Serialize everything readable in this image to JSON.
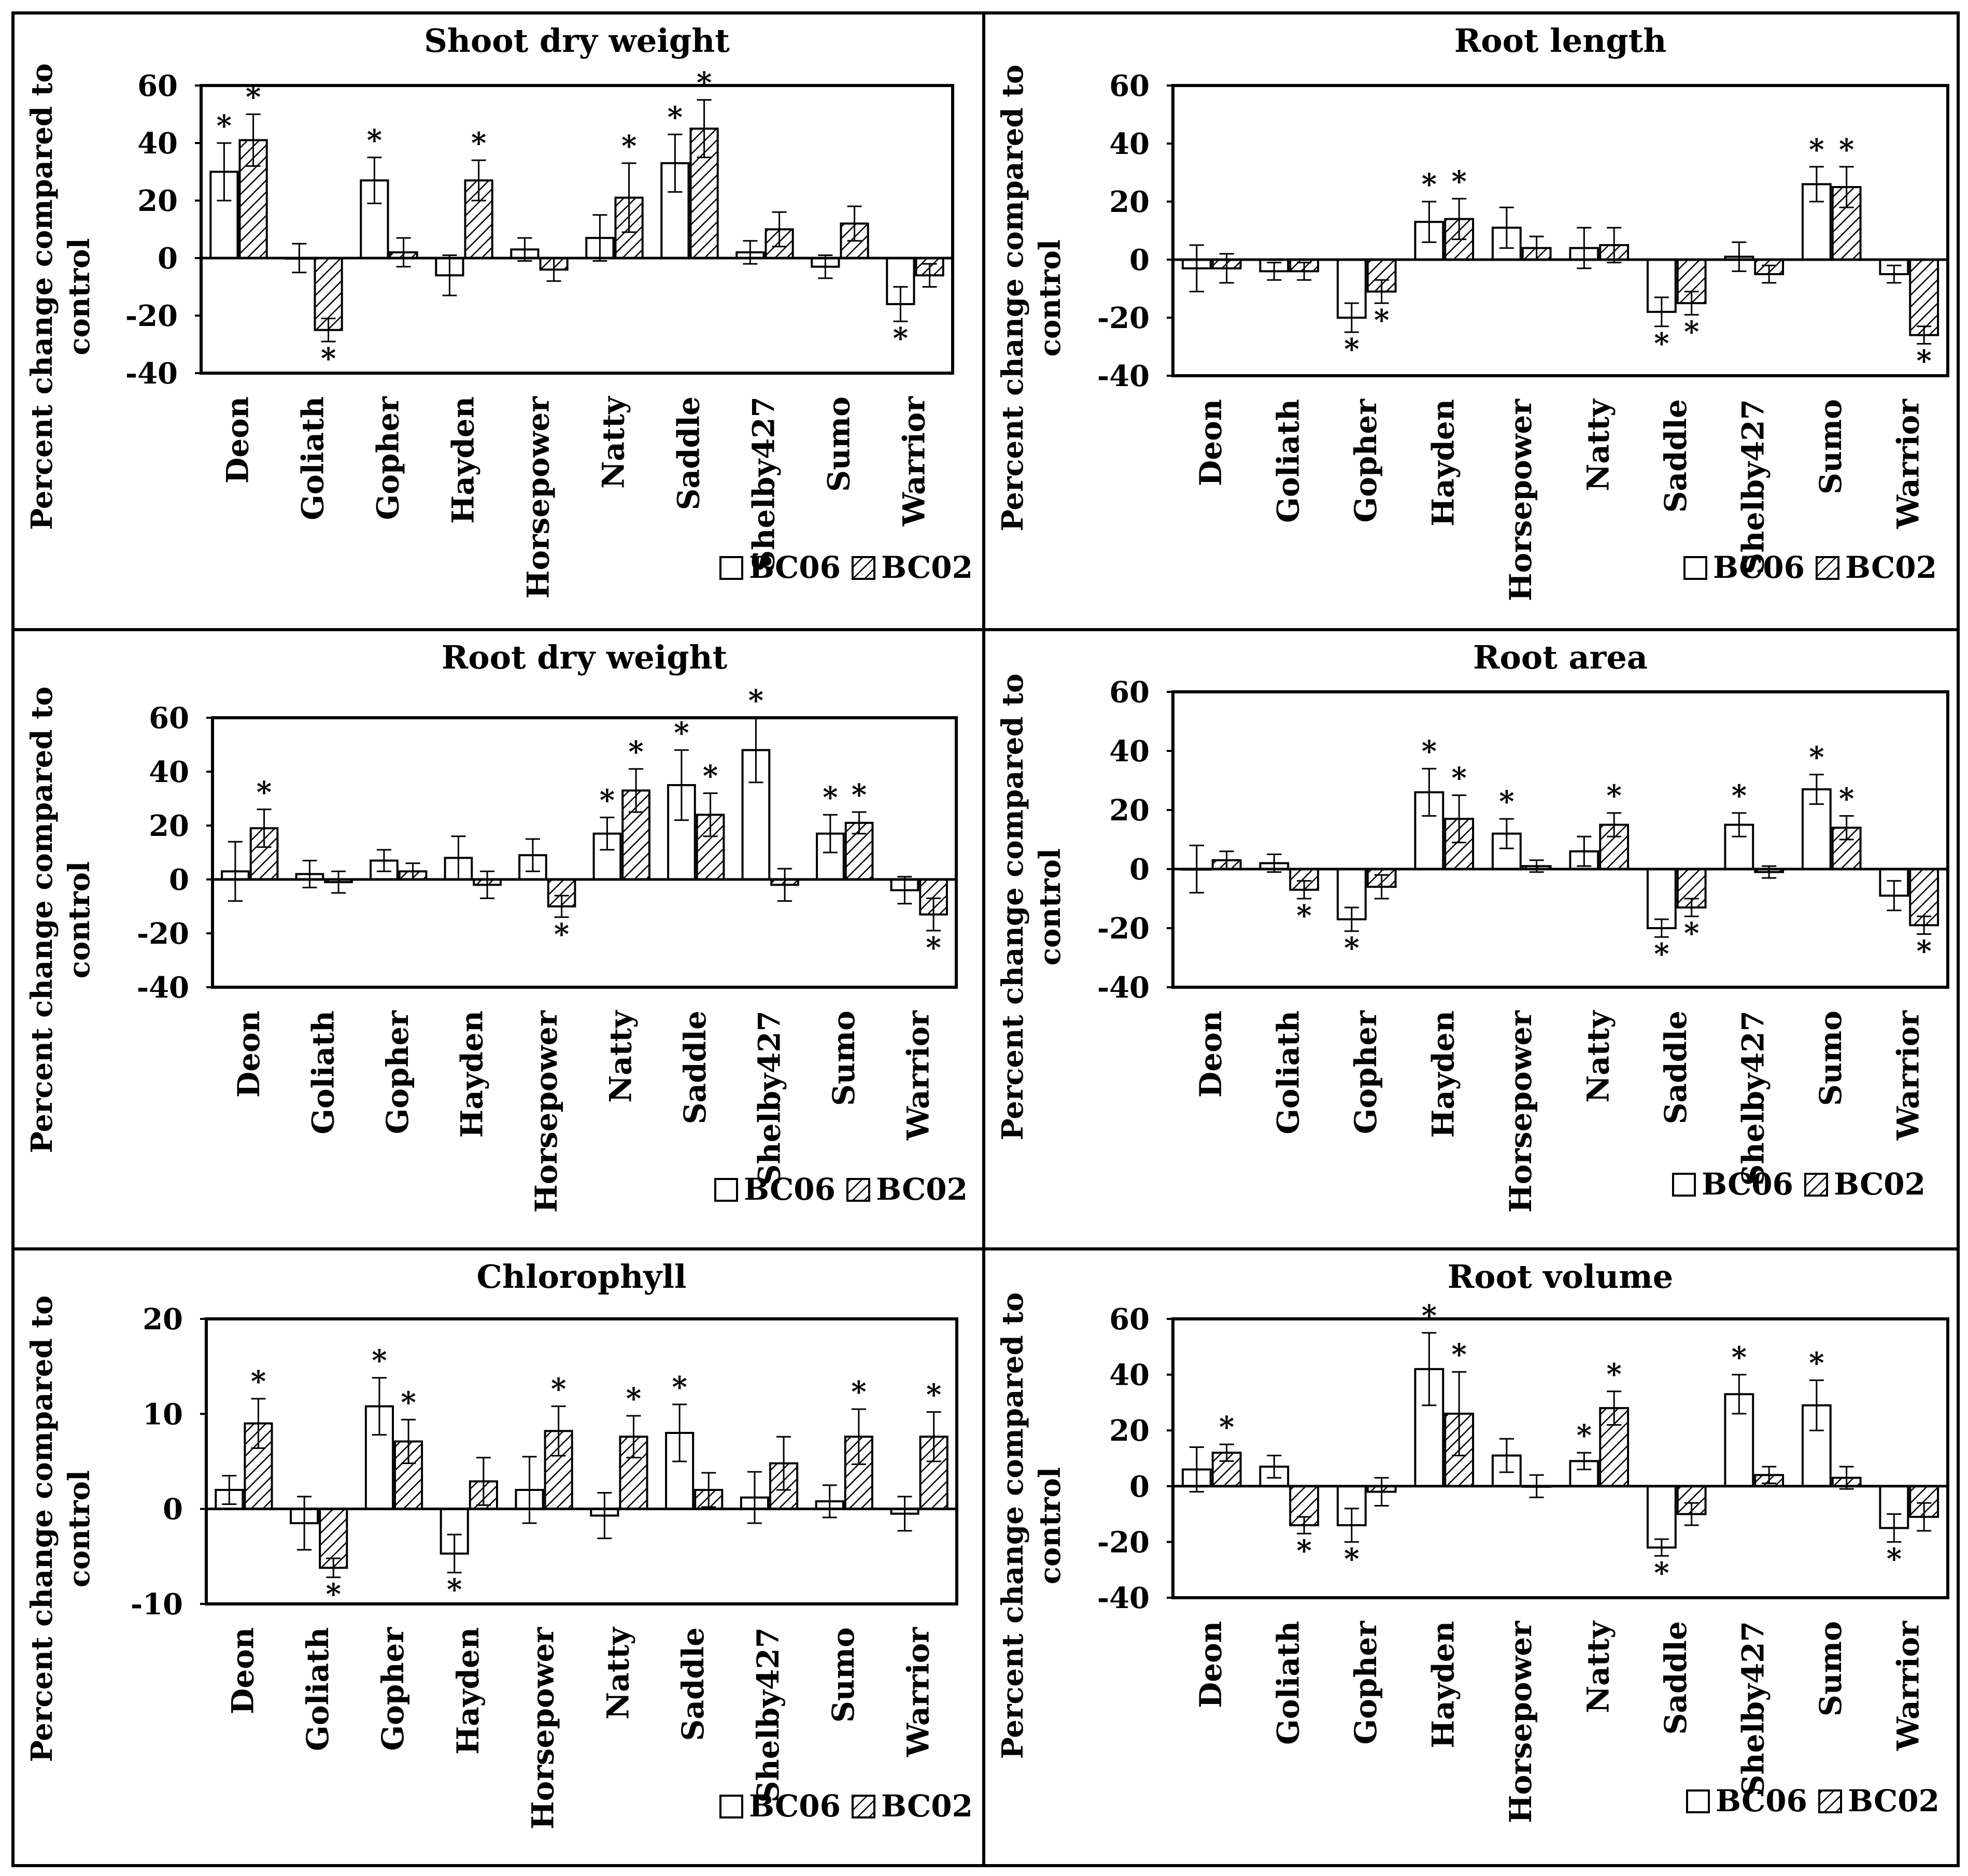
{
  "chart_data": [
    {
      "type": "bar",
      "title": "Shoot dry weight",
      "ylabel": "Percent change compared to control",
      "ylim": [
        -40,
        60
      ],
      "yticks": [
        60,
        40,
        20,
        0,
        -20,
        -40
      ],
      "categories": [
        "Deon",
        "Goliath",
        "Gopher",
        "Hayden",
        "Horsepower",
        "Natty",
        "Saddle",
        "Shelby427",
        "Sumo",
        "Warrior"
      ],
      "legend": [
        "BC06",
        "BC02"
      ],
      "series": [
        {
          "name": "BC06",
          "values": [
            30,
            0,
            27,
            -6,
            3,
            7,
            33,
            2,
            -3,
            -16
          ],
          "errors": [
            10,
            5,
            8,
            7,
            4,
            8,
            10,
            4,
            4,
            6
          ],
          "sig": [
            true,
            false,
            true,
            false,
            false,
            false,
            true,
            false,
            false,
            true
          ]
        },
        {
          "name": "BC02",
          "values": [
            41,
            -25,
            2,
            27,
            -4,
            21,
            45,
            10,
            12,
            -6
          ],
          "errors": [
            9,
            4,
            5,
            7,
            4,
            12,
            10,
            6,
            6,
            4
          ],
          "sig": [
            true,
            true,
            false,
            true,
            false,
            true,
            true,
            false,
            false,
            false
          ]
        }
      ]
    },
    {
      "type": "bar",
      "title": "Root length",
      "ylabel": "Percent change compared to control",
      "ylim": [
        -40,
        60
      ],
      "yticks": [
        60,
        40,
        20,
        0,
        -20,
        -40
      ],
      "categories": [
        "Deon",
        "Goliath",
        "Gopher",
        "Hayden",
        "Horsepower",
        "Natty",
        "Saddle",
        "Shelby427",
        "Sumo",
        "Warrior"
      ],
      "legend": [
        "BC06",
        "BC02"
      ],
      "series": [
        {
          "name": "BC06",
          "values": [
            -3,
            -4,
            -20,
            13,
            11,
            4,
            -18,
            1,
            26,
            -5
          ],
          "errors": [
            8,
            3,
            5,
            7,
            7,
            7,
            5,
            5,
            6,
            3
          ],
          "sig": [
            false,
            false,
            true,
            true,
            false,
            false,
            true,
            false,
            true,
            false
          ]
        },
        {
          "name": "BC02",
          "values": [
            -3,
            -4,
            -11,
            14,
            4,
            5,
            -15,
            -5,
            25,
            -26
          ],
          "errors": [
            5,
            3,
            4,
            7,
            4,
            6,
            4,
            3,
            7,
            3
          ],
          "sig": [
            false,
            false,
            true,
            true,
            false,
            false,
            true,
            false,
            true,
            true
          ]
        }
      ]
    },
    {
      "type": "bar",
      "title": "Root dry weight",
      "ylabel": "Percent change compared to control",
      "ylim": [
        -40,
        60
      ],
      "yticks": [
        60,
        40,
        20,
        0,
        -20,
        -40
      ],
      "categories": [
        "Deon",
        "Goliath",
        "Gopher",
        "Hayden",
        "Horsepower",
        "Natty",
        "Saddle",
        "Shelby427",
        "Sumo",
        "Warrior"
      ],
      "legend": [
        "BC06",
        "BC02"
      ],
      "series": [
        {
          "name": "BC06",
          "values": [
            3,
            2,
            7,
            8,
            9,
            17,
            35,
            48,
            17,
            -4
          ],
          "errors": [
            11,
            5,
            4,
            8,
            6,
            6,
            13,
            12,
            7,
            5
          ],
          "sig": [
            false,
            false,
            false,
            false,
            false,
            true,
            true,
            true,
            true,
            false
          ]
        },
        {
          "name": "BC02",
          "values": [
            19,
            -1,
            3,
            -2,
            -10,
            33,
            24,
            -2,
            21,
            -13
          ],
          "errors": [
            7,
            4,
            3,
            5,
            4,
            8,
            8,
            6,
            4,
            6
          ],
          "sig": [
            true,
            false,
            false,
            false,
            true,
            true,
            true,
            false,
            true,
            true
          ]
        }
      ]
    },
    {
      "type": "bar",
      "title": "Root area",
      "ylabel": "Percent change compared to control",
      "ylim": [
        -40,
        60
      ],
      "yticks": [
        60,
        40,
        20,
        0,
        -20,
        -40
      ],
      "categories": [
        "Deon",
        "Goliath",
        "Gopher",
        "Hayden",
        "Horsepower",
        "Natty",
        "Saddle",
        "Shelby427",
        "Sumo",
        "Warrior"
      ],
      "legend": [
        "BC06",
        "BC02"
      ],
      "series": [
        {
          "name": "BC06",
          "values": [
            0,
            2,
            -17,
            26,
            12,
            6,
            -20,
            15,
            27,
            -9
          ],
          "errors": [
            8,
            3,
            4,
            8,
            5,
            5,
            3,
            4,
            5,
            5
          ],
          "sig": [
            false,
            false,
            true,
            true,
            true,
            false,
            true,
            true,
            true,
            false
          ]
        },
        {
          "name": "BC02",
          "values": [
            3,
            -7,
            -6,
            17,
            1,
            15,
            -13,
            -1,
            14,
            -19
          ],
          "errors": [
            3,
            3,
            4,
            8,
            2,
            4,
            3,
            2,
            4,
            3
          ],
          "sig": [
            false,
            true,
            false,
            true,
            false,
            true,
            true,
            false,
            true,
            true
          ]
        }
      ]
    },
    {
      "type": "bar",
      "title": "Chlorophyll",
      "ylabel": "Percent change compared to control",
      "ylim": [
        -10,
        20
      ],
      "yticks": [
        20,
        10,
        0,
        -10
      ],
      "categories": [
        "Deon",
        "Goliath",
        "Gopher",
        "Hayden",
        "Horsepower",
        "Natty",
        "Saddle",
        "Shelby427",
        "Sumo",
        "Warrior"
      ],
      "legend": [
        "BC06",
        "BC02"
      ],
      "series": [
        {
          "name": "BC06",
          "values": [
            2,
            -1.5,
            10.8,
            -4.7,
            2,
            -0.7,
            8,
            1.2,
            0.8,
            -0.5
          ],
          "errors": [
            1.5,
            2.8,
            3,
            2,
            3.5,
            2.4,
            3,
            2.7,
            1.7,
            1.8
          ],
          "sig": [
            false,
            false,
            true,
            true,
            false,
            false,
            true,
            false,
            false,
            false
          ]
        },
        {
          "name": "BC02",
          "values": [
            9,
            -6.2,
            7.1,
            2.9,
            8.2,
            7.6,
            2,
            4.8,
            7.6,
            7.6
          ],
          "errors": [
            2.6,
            1,
            2.3,
            2.5,
            2.6,
            2.2,
            1.8,
            2.8,
            2.9,
            2.6
          ],
          "sig": [
            true,
            true,
            true,
            false,
            true,
            true,
            false,
            false,
            true,
            true
          ]
        }
      ]
    },
    {
      "type": "bar",
      "title": "Root volume",
      "ylabel": "Percent change compared to control",
      "ylim": [
        -40,
        60
      ],
      "yticks": [
        60,
        40,
        20,
        0,
        -20,
        -40
      ],
      "categories": [
        "Deon",
        "Goliath",
        "Gopher",
        "Hayden",
        "Horsepower",
        "Natty",
        "Saddle",
        "Shelby427",
        "Sumo",
        "Warrior"
      ],
      "legend": [
        "BC06",
        "BC02"
      ],
      "series": [
        {
          "name": "BC06",
          "values": [
            6,
            7,
            -14,
            42,
            11,
            9,
            -22,
            33,
            29,
            -15
          ],
          "errors": [
            8,
            4,
            6,
            13,
            6,
            3,
            3,
            7,
            9,
            5
          ],
          "sig": [
            false,
            false,
            true,
            true,
            false,
            true,
            true,
            true,
            true,
            true
          ]
        },
        {
          "name": "BC02",
          "values": [
            12,
            -14,
            -2,
            26,
            0,
            28,
            -10,
            4,
            3,
            -11
          ],
          "errors": [
            3,
            3,
            5,
            15,
            4,
            6,
            4,
            3,
            4,
            5
          ],
          "sig": [
            true,
            true,
            false,
            true,
            false,
            true,
            false,
            false,
            false,
            false
          ]
        }
      ]
    }
  ]
}
